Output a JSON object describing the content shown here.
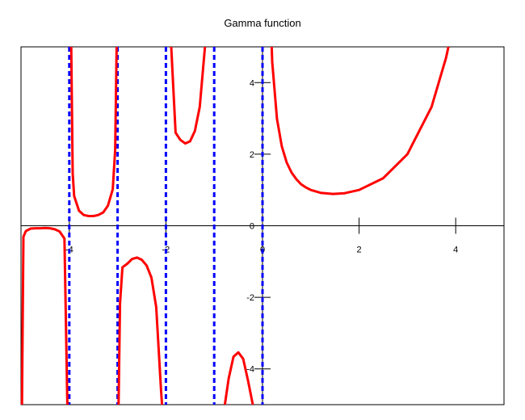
{
  "chart_data": {
    "type": "line",
    "title": "Gamma function",
    "xlabel": "",
    "ylabel": "",
    "xlim": [
      -5,
      5
    ],
    "ylim": [
      -5,
      5
    ],
    "x_ticks": [
      -4,
      -2,
      0,
      2,
      4
    ],
    "x_tick_labels": [
      "-4",
      "-2",
      "0",
      "2",
      "4"
    ],
    "y_ticks": [
      -4,
      -2,
      0,
      2,
      4
    ],
    "y_tick_labels": [
      "-4",
      "-2",
      "0",
      "2",
      "4"
    ],
    "grid": false,
    "series": [
      {
        "color": "#ff0000",
        "segments": [
          [
            [
              -4.98,
              -5.0
            ],
            [
              -4.95,
              -0.31
            ],
            [
              -4.9,
              -0.15
            ],
            [
              -4.8,
              -0.08
            ],
            [
              -4.7,
              -0.07
            ],
            [
              -4.6,
              -0.07
            ],
            [
              -4.5,
              -0.06
            ],
            [
              -4.4,
              -0.07
            ],
            [
              -4.3,
              -0.1
            ],
            [
              -4.2,
              -0.16
            ],
            [
              -4.1,
              -0.36
            ],
            [
              -4.04,
              -5.0
            ]
          ],
          [
            [
              -3.96,
              5.0
            ],
            [
              -3.93,
              1.47
            ],
            [
              -3.9,
              0.83
            ],
            [
              -3.8,
              0.42
            ],
            [
              -3.7,
              0.3
            ],
            [
              -3.6,
              0.27
            ],
            [
              -3.5,
              0.27
            ],
            [
              -3.4,
              0.3
            ],
            [
              -3.3,
              0.37
            ],
            [
              -3.2,
              0.56
            ],
            [
              -3.1,
              1.02
            ],
            [
              -3.05,
              2.12
            ],
            [
              -3.02,
              5.0
            ]
          ],
          [
            [
              -2.98,
              -5.0
            ],
            [
              -2.95,
              -2.17
            ],
            [
              -2.9,
              -1.16
            ],
            [
              -2.8,
              -1.06
            ],
            [
              -2.7,
              -0.93
            ],
            [
              -2.6,
              -0.89
            ],
            [
              -2.5,
              -0.95
            ],
            [
              -2.4,
              -1.11
            ],
            [
              -2.3,
              -1.45
            ],
            [
              -2.2,
              -2.27
            ],
            [
              -2.1,
              -4.6
            ],
            [
              -2.08,
              -5.0
            ]
          ],
          [
            [
              -1.89,
              5.0
            ],
            [
              -1.8,
              2.6
            ],
            [
              -1.7,
              2.4
            ],
            [
              -1.6,
              2.3
            ],
            [
              -1.5,
              2.36
            ],
            [
              -1.4,
              2.65
            ],
            [
              -1.3,
              3.32
            ],
            [
              -1.2,
              4.85
            ],
            [
              -1.19,
              5.0
            ]
          ],
          [
            [
              -0.78,
              -5.0
            ],
            [
              -0.7,
              -4.27
            ],
            [
              -0.6,
              -3.66
            ],
            [
              -0.5,
              -3.54
            ],
            [
              -0.4,
              -3.72
            ],
            [
              -0.3,
              -4.33
            ],
            [
              -0.2,
              -5.0
            ]
          ],
          [
            [
              0.19,
              5.0
            ],
            [
              0.2,
              4.59
            ],
            [
              0.3,
              2.99
            ],
            [
              0.4,
              2.22
            ],
            [
              0.5,
              1.77
            ],
            [
              0.6,
              1.49
            ],
            [
              0.7,
              1.3
            ],
            [
              0.8,
              1.16
            ],
            [
              0.9,
              1.07
            ],
            [
              1.0,
              1.0
            ],
            [
              1.2,
              0.92
            ],
            [
              1.46,
              0.89
            ],
            [
              1.7,
              0.91
            ],
            [
              2.0,
              1.0
            ],
            [
              2.5,
              1.33
            ],
            [
              3.0,
              2.0
            ],
            [
              3.5,
              3.32
            ],
            [
              3.8,
              4.69
            ],
            [
              3.85,
              5.0
            ]
          ]
        ]
      }
    ],
    "asymptotes": {
      "color": "#0000ff",
      "x": [
        -4,
        -3,
        -2,
        -1,
        0
      ]
    }
  }
}
